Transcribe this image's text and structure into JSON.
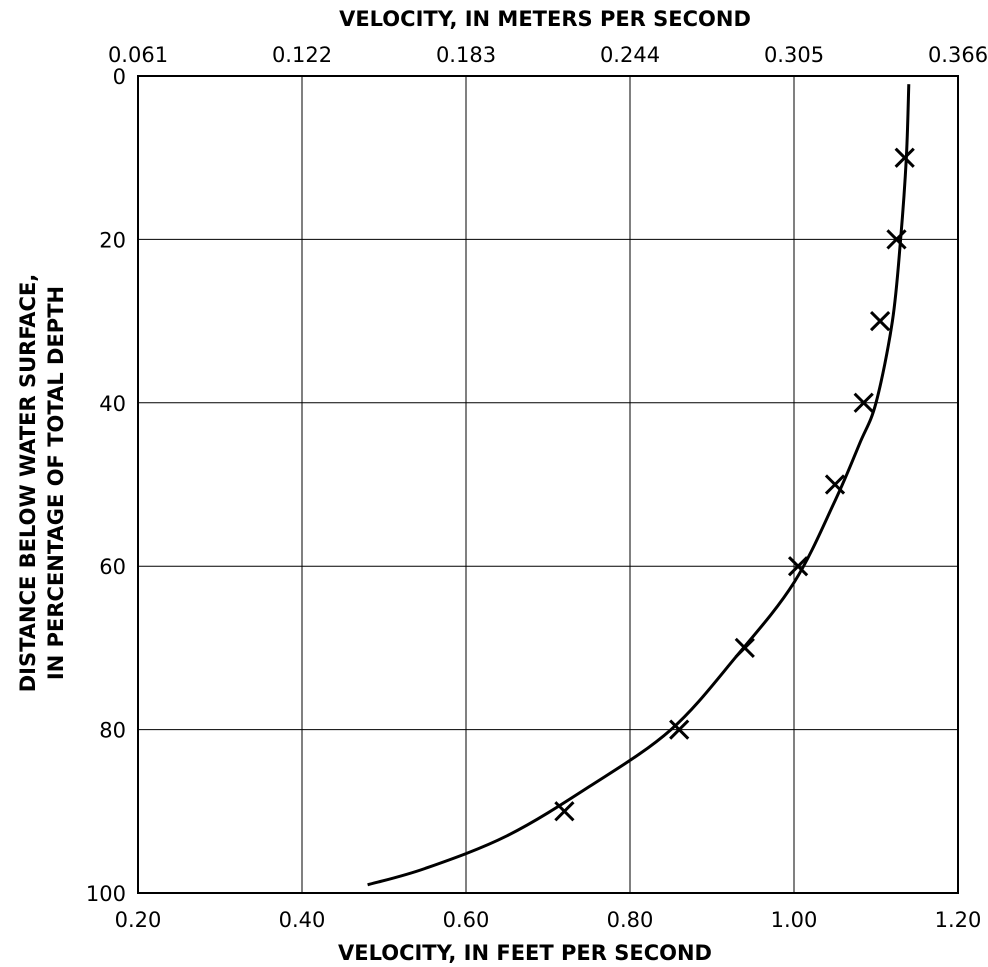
{
  "chart_data": {
    "type": "line",
    "title": "",
    "xlabel": "VELOCITY, IN FEET PER SECOND",
    "x2label": "VELOCITY, IN METERS PER SECOND",
    "ylabel_line1": "DISTANCE BELOW WATER SURFACE,",
    "ylabel_line2": "IN PERCENTAGE OF TOTAL DEPTH",
    "xlim": [
      0.2,
      1.2
    ],
    "ylim": [
      0,
      100
    ],
    "y_inverted": true,
    "grid": true,
    "x_ticks": [
      {
        "value": 0.2,
        "label": "0.20"
      },
      {
        "value": 0.4,
        "label": "0.40"
      },
      {
        "value": 0.6,
        "label": "0.60"
      },
      {
        "value": 0.8,
        "label": "0.80"
      },
      {
        "value": 1.0,
        "label": "1.00"
      },
      {
        "value": 1.2,
        "label": "1.20"
      }
    ],
    "x2_ticks": [
      {
        "value": 0.2,
        "label": "0.061"
      },
      {
        "value": 0.4,
        "label": "0.122"
      },
      {
        "value": 0.6,
        "label": "0.183"
      },
      {
        "value": 0.8,
        "label": "0.244"
      },
      {
        "value": 1.0,
        "label": "0.305"
      },
      {
        "value": 1.2,
        "label": "0.366"
      }
    ],
    "y_ticks": [
      {
        "value": 0,
        "label": "0"
      },
      {
        "value": 20,
        "label": "20"
      },
      {
        "value": 40,
        "label": "40"
      },
      {
        "value": 60,
        "label": "60"
      },
      {
        "value": 80,
        "label": "80"
      },
      {
        "value": 100,
        "label": "100"
      }
    ],
    "series": [
      {
        "style": "curve",
        "x": [
          1.14,
          1.137,
          1.13,
          1.12,
          1.1,
          1.08,
          1.05,
          1.0,
          0.93,
          0.85,
          0.75,
          0.65,
          0.55,
          0.48
        ],
        "y": [
          1,
          10,
          20,
          30,
          40,
          45,
          52,
          62,
          71,
          80,
          87,
          93,
          97,
          99
        ]
      },
      {
        "style": "x-markers",
        "x": [
          1.135,
          1.125,
          1.105,
          1.085,
          1.05,
          1.005,
          0.94,
          0.86,
          0.72
        ],
        "y": [
          10,
          20,
          30,
          40,
          50,
          60,
          70,
          80,
          90
        ]
      }
    ]
  }
}
